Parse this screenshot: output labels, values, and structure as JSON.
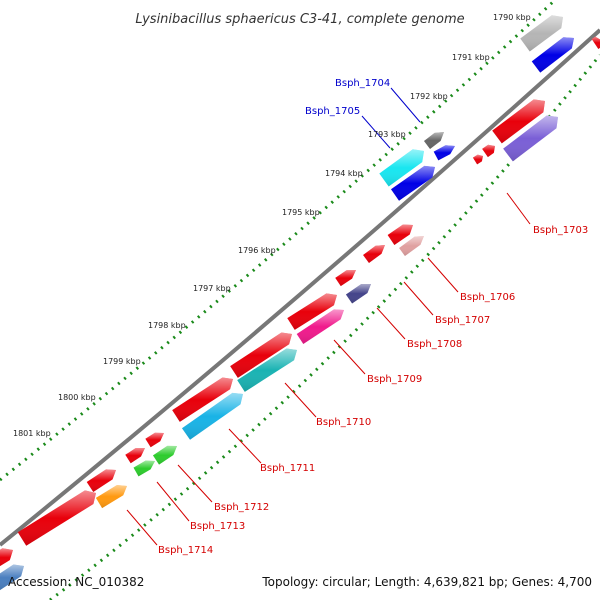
{
  "title": "Lysinibacillus sphaericus C3-41, complete genome",
  "accession": "Accession: NC_010382",
  "summary": "Topology: circular; Length: 4,639,821 bp; Genes: 4,700",
  "kbp_labels": [
    "1790 kbp",
    "1791 kbp",
    "1792 kbp",
    "1793 kbp",
    "1794 kbp",
    "1795 kbp",
    "1796 kbp",
    "1797 kbp",
    "1798 kbp",
    "1799 kbp",
    "1800 kbp",
    "1801 kbp"
  ],
  "gene_labels_forward": [
    "Bsph_1704",
    "Bsph_1705"
  ],
  "gene_labels_reverse": [
    "Bsph_1703",
    "Bsph_1706",
    "Bsph_1707",
    "Bsph_1708",
    "Bsph_1709",
    "Bsph_1710",
    "Bsph_1711",
    "Bsph_1712",
    "Bsph_1713",
    "Bsph_1714"
  ],
  "colors": {
    "backbone": "#7a7a7a",
    "tick": "#1a8a1a",
    "red": "#e8000b",
    "blue": "#0000e6",
    "gray": "#b5b5b5",
    "darkgray": "#666666",
    "cyan": "#19e6f0",
    "purple": "#7a5fd6",
    "navy": "#44448a",
    "magenta": "#f01a8c",
    "teal": "#1ab3b3",
    "skyblue": "#19b3e6",
    "green": "#2ecc2e",
    "orange": "#ff9910",
    "steel": "#4a7fbf",
    "pink": "#e0a0a0"
  }
}
